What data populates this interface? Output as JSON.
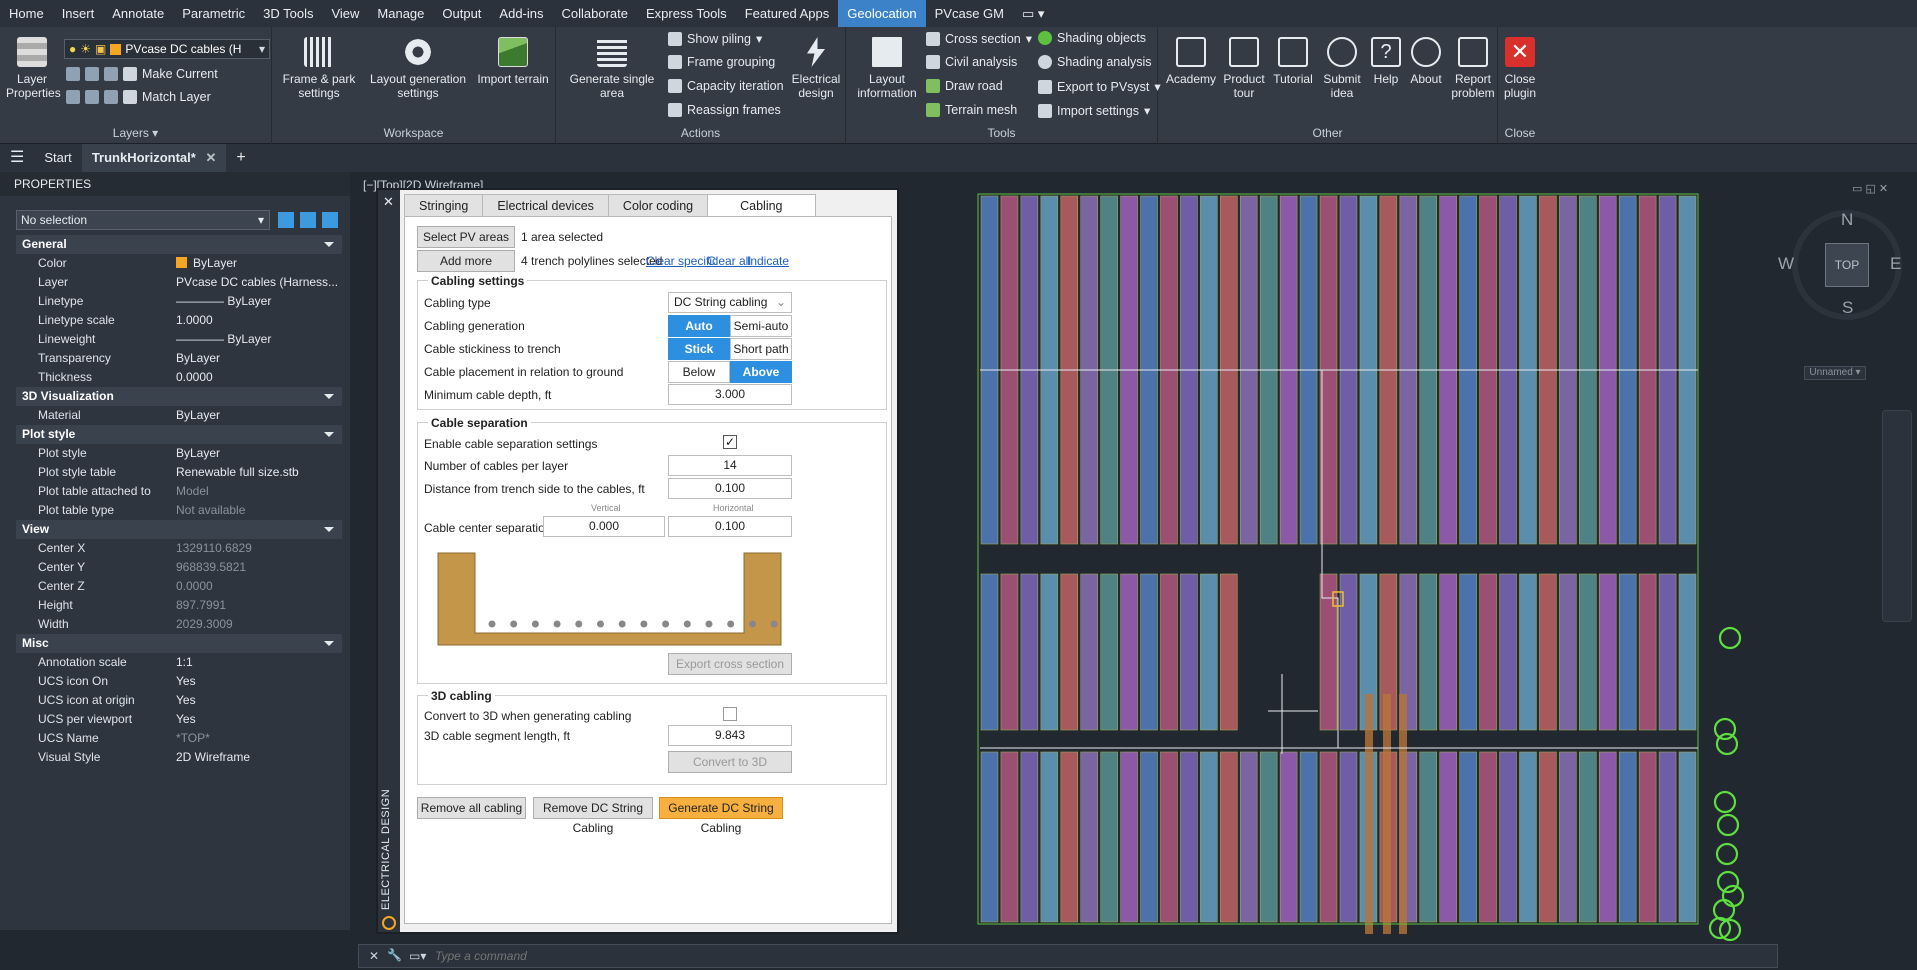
{
  "menubar": {
    "items": [
      "Home",
      "Insert",
      "Annotate",
      "Parametric",
      "3D Tools",
      "View",
      "Manage",
      "Output",
      "Add-ins",
      "Collaborate",
      "Express Tools",
      "Featured Apps",
      "Geolocation",
      "PVcase GM"
    ],
    "active": "Geolocation"
  },
  "ribbon": {
    "layers": {
      "title": "Layers",
      "layer_properties": "Layer Properties",
      "layer_dropdown": "PVcase DC cables (H",
      "make_current": "Make Current",
      "match_layer": "Match Layer"
    },
    "workspace": {
      "title": "Workspace",
      "frame_park": "Frame & park settings",
      "layout_gen": "Layout generation settings",
      "import_terrain": "Import terrain"
    },
    "actions": {
      "title": "Actions",
      "generate_single": "Generate single area",
      "show_piling": "Show piling",
      "frame_grouping": "Frame grouping",
      "capacity_iteration": "Capacity iteration",
      "reassign_frames": "Reassign frames",
      "electrical_design": "Electrical design"
    },
    "tools": {
      "title": "Tools",
      "layout_information": "Layout information",
      "cross_section": "Cross section",
      "civil_analysis": "Civil analysis",
      "draw_road": "Draw road",
      "terrain_mesh": "Terrain mesh",
      "shading_objects": "Shading objects",
      "shading_analysis": "Shading analysis",
      "export_pvsyst": "Export to PVsyst",
      "import_settings": "Import settings"
    },
    "other": {
      "title": "Other",
      "academy": "Academy",
      "product_tour": "Product tour",
      "tutorial": "Tutorial",
      "submit_idea": "Submit idea",
      "help": "Help",
      "about": "About",
      "report_problem": "Report problem"
    },
    "close": {
      "title": "Close",
      "close_plugin": "Close plugin"
    }
  },
  "tabs": {
    "start": "Start",
    "current": "TrunkHorizontal*"
  },
  "properties": {
    "header": "PROPERTIES",
    "selection": "No selection",
    "general": {
      "title": "General",
      "rows": [
        [
          "Color",
          "ByLayer"
        ],
        [
          "Layer",
          "PVcase DC cables (Harness..."
        ],
        [
          "Linetype",
          "———— ByLayer"
        ],
        [
          "Linetype scale",
          "1.0000"
        ],
        [
          "Lineweight",
          "———— ByLayer"
        ],
        [
          "Transparency",
          "ByLayer"
        ],
        [
          "Thickness",
          "0.0000"
        ]
      ]
    },
    "viz": {
      "title": "3D Visualization",
      "rows": [
        [
          "Material",
          "ByLayer"
        ]
      ]
    },
    "plot": {
      "title": "Plot style",
      "rows": [
        [
          "Plot style",
          "ByLayer"
        ],
        [
          "Plot style table",
          "Renewable full size.stb"
        ],
        [
          "Plot table attached to",
          "Model"
        ],
        [
          "Plot table type",
          "Not available"
        ]
      ]
    },
    "view": {
      "title": "View",
      "rows": [
        [
          "Center X",
          "1329110.6829"
        ],
        [
          "Center Y",
          "968839.5821"
        ],
        [
          "Center Z",
          "0.0000"
        ],
        [
          "Height",
          "897.7991"
        ],
        [
          "Width",
          "2029.3009"
        ]
      ]
    },
    "misc": {
      "title": "Misc",
      "rows": [
        [
          "Annotation scale",
          "1:1"
        ],
        [
          "UCS icon On",
          "Yes"
        ],
        [
          "UCS icon at origin",
          "Yes"
        ],
        [
          "UCS per viewport",
          "Yes"
        ],
        [
          "UCS Name",
          "*TOP*"
        ],
        [
          "Visual Style",
          "2D Wireframe"
        ]
      ]
    }
  },
  "viewport_label": "[−][Top][2D Wireframe]",
  "viewcube": {
    "n": "N",
    "s": "S",
    "e": "E",
    "w": "W",
    "top": "TOP",
    "unnamed": "Unnamed"
  },
  "dialog": {
    "side_title": "ELECTRICAL DESIGN",
    "tabs": [
      "Stringing",
      "Electrical devices",
      "Color coding",
      "Cabling"
    ],
    "select_pv": "Select PV areas",
    "pv_status": "1 area selected",
    "add_trench": "Add more trenchlines",
    "trench_status": "4 trench polylines selected",
    "clear_specific": "Clear specific",
    "clear_all": "Clear all",
    "indicate": "Indicate",
    "cabling_settings": {
      "title": "Cabling settings",
      "type_label": "Cabling type",
      "type_value": "DC String cabling",
      "gen_label": "Cabling generation",
      "gen_auto": "Auto",
      "gen_semi": "Semi-auto",
      "stick_label": "Cable stickiness to trench",
      "stick": "Stick",
      "short_path": "Short path",
      "place_label": "Cable placement in relation to ground",
      "below": "Below",
      "above": "Above",
      "depth_label": "Minimum cable depth, ft",
      "depth_value": "3.000"
    },
    "separation": {
      "title": "Cable separation",
      "enable_label": "Enable cable separation settings",
      "per_layer_label": "Number of cables per layer",
      "per_layer_value": "14",
      "dist_label": "Distance from trench side to the cables, ft",
      "dist_value": "0.100",
      "vertical": "Vertical",
      "horizontal": "Horizontal",
      "center_label": "Cable center separation, ft",
      "v_value": "0.000",
      "h_value": "0.100",
      "export": "Export cross section"
    },
    "cabling3d": {
      "title": "3D cabling",
      "convert_label": "Convert to 3D when generating cabling",
      "seg_label": "3D cable segment length, ft",
      "seg_value": "9.843",
      "convert_btn": "Convert to 3D"
    },
    "remove_all": "Remove all cabling",
    "remove_dc": "Remove DC String Cabling",
    "generate_dc": "Generate DC String Cabling"
  },
  "command": {
    "placeholder": "Type a command"
  },
  "colors": {
    "accent": "#2d8fe0",
    "generate": "#f7b040",
    "active_tab": "#3c82c9"
  }
}
